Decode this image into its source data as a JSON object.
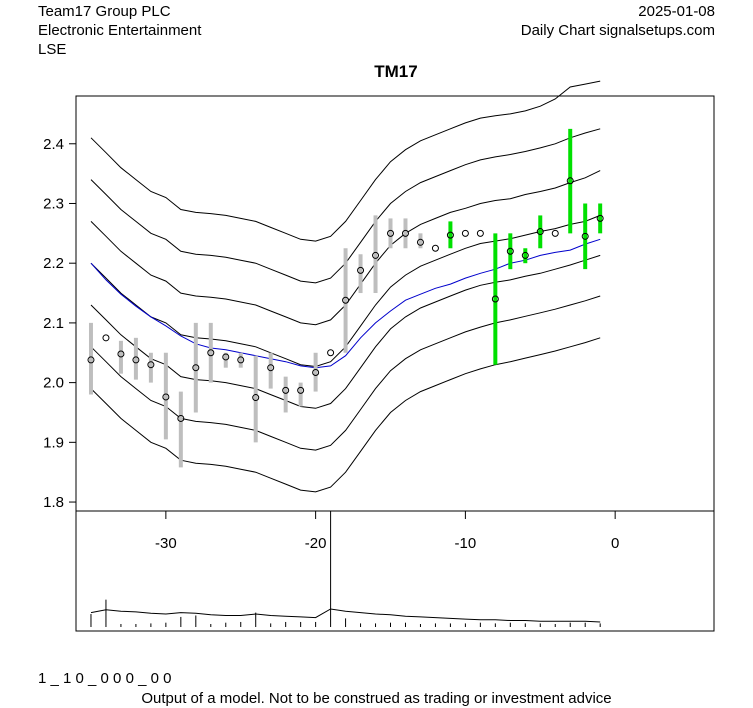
{
  "header": {
    "company": "Team17 Group PLC",
    "sector": "Electronic Entertainment",
    "exchange": "LSE",
    "date": "2025-01-08",
    "chart_kind": "Daily Chart signalsetups.com"
  },
  "footer": {
    "code": "1 _ 1 0 _ 0 0 0 _ 0 0",
    "disclaimer": "Output of a model. Not to be construed as trading or investment advice"
  },
  "colors": {
    "band": "#000000",
    "center": "#0000cc",
    "bar_past": "#bebebe",
    "bar_recent": "#00e000"
  },
  "chart_data": {
    "type": "line",
    "title": "TM17",
    "xlabel": "",
    "ylabel": "",
    "xlim": [
      -36,
      6.6
    ],
    "ylim": [
      1.785,
      2.48
    ],
    "x_ticks": [
      -30,
      -20,
      -10,
      0
    ],
    "y_ticks": [
      1.8,
      1.9,
      2.0,
      2.1,
      2.2,
      2.3,
      2.4
    ],
    "x": [
      -35,
      -34,
      -33,
      -32,
      -31,
      -30,
      -29,
      -28,
      -27,
      -26,
      -25,
      -24,
      -23,
      -22,
      -21,
      -20,
      -19,
      -18,
      -17,
      -16,
      -15,
      -14,
      -13,
      -12,
      -11,
      -10,
      -9,
      -8,
      -7,
      -6,
      -5,
      -4,
      -3,
      -2,
      -1
    ],
    "bands": [
      {
        "name": "upper3",
        "values": [
          2.41,
          2.385,
          2.36,
          2.34,
          2.32,
          2.31,
          2.29,
          2.285,
          2.283,
          2.28,
          2.275,
          2.27,
          2.26,
          2.25,
          2.24,
          2.237,
          2.245,
          2.27,
          2.305,
          2.34,
          2.37,
          2.39,
          2.405,
          2.415,
          2.425,
          2.435,
          2.443,
          2.447,
          2.45,
          2.455,
          2.463,
          2.475,
          2.495,
          2.5,
          2.505
        ]
      },
      {
        "name": "upper2",
        "values": [
          2.34,
          2.315,
          2.29,
          2.27,
          2.25,
          2.24,
          2.22,
          2.215,
          2.213,
          2.21,
          2.205,
          2.2,
          2.19,
          2.18,
          2.17,
          2.167,
          2.175,
          2.2,
          2.235,
          2.27,
          2.3,
          2.32,
          2.335,
          2.345,
          2.355,
          2.365,
          2.373,
          2.378,
          2.382,
          2.387,
          2.393,
          2.4,
          2.41,
          2.418,
          2.425
        ]
      },
      {
        "name": "upper1",
        "values": [
          2.27,
          2.245,
          2.22,
          2.2,
          2.18,
          2.17,
          2.15,
          2.145,
          2.143,
          2.14,
          2.135,
          2.13,
          2.12,
          2.11,
          2.1,
          2.097,
          2.105,
          2.13,
          2.165,
          2.2,
          2.23,
          2.25,
          2.265,
          2.275,
          2.285,
          2.292,
          2.3,
          2.305,
          2.308,
          2.315,
          2.32,
          2.326,
          2.335,
          2.343,
          2.355
        ]
      },
      {
        "name": "center",
        "values": [
          2.2,
          2.175,
          2.15,
          2.13,
          2.11,
          2.1,
          2.08,
          2.075,
          2.073,
          2.07,
          2.065,
          2.06,
          2.05,
          2.04,
          2.03,
          2.027,
          2.035,
          2.06,
          2.095,
          2.13,
          2.16,
          2.18,
          2.195,
          2.205,
          2.215,
          2.225,
          2.233,
          2.237,
          2.241,
          2.247,
          2.253,
          2.258,
          2.265,
          2.27,
          2.28
        ]
      },
      {
        "name": "lower1",
        "values": [
          2.13,
          2.105,
          2.08,
          2.06,
          2.04,
          2.03,
          2.01,
          2.005,
          2.003,
          2.0,
          1.995,
          1.99,
          1.98,
          1.97,
          1.96,
          1.957,
          1.965,
          1.99,
          2.025,
          2.06,
          2.09,
          2.11,
          2.125,
          2.135,
          2.145,
          2.155,
          2.163,
          2.168,
          2.172,
          2.178,
          2.183,
          2.19,
          2.197,
          2.205,
          2.213
        ]
      },
      {
        "name": "lower2",
        "values": [
          2.06,
          2.035,
          2.01,
          1.99,
          1.97,
          1.96,
          1.94,
          1.935,
          1.933,
          1.93,
          1.925,
          1.92,
          1.91,
          1.9,
          1.89,
          1.887,
          1.895,
          1.92,
          1.955,
          1.99,
          2.02,
          2.04,
          2.055,
          2.065,
          2.075,
          2.085,
          2.093,
          2.1,
          2.105,
          2.111,
          2.117,
          2.123,
          2.13,
          2.137,
          2.145
        ]
      },
      {
        "name": "lower3",
        "values": [
          1.99,
          1.965,
          1.94,
          1.92,
          1.9,
          1.89,
          1.87,
          1.865,
          1.863,
          1.86,
          1.855,
          1.85,
          1.84,
          1.83,
          1.82,
          1.817,
          1.825,
          1.85,
          1.885,
          1.92,
          1.95,
          1.97,
          1.985,
          1.995,
          2.005,
          2.015,
          2.023,
          2.03,
          2.035,
          2.041,
          2.047,
          2.053,
          2.06,
          2.067,
          2.075
        ]
      }
    ],
    "center_series": [
      2.2,
      2.172,
      2.148,
      2.128,
      2.11,
      2.095,
      2.078,
      2.065,
      2.058,
      2.055,
      2.05,
      2.045,
      2.04,
      2.035,
      2.028,
      2.025,
      2.028,
      2.045,
      2.075,
      2.1,
      2.12,
      2.138,
      2.148,
      2.158,
      2.165,
      2.175,
      2.183,
      2.19,
      2.2,
      2.205,
      2.213,
      2.218,
      2.222,
      2.232,
      2.24
    ],
    "bars": [
      {
        "x": -35,
        "low": 1.98,
        "high": 2.1,
        "close": 2.038,
        "recent": false
      },
      {
        "x": -34,
        "low": 2.075,
        "high": 2.075,
        "close": 2.075,
        "recent": false
      },
      {
        "x": -33,
        "low": 2.015,
        "high": 2.07,
        "close": 2.048,
        "recent": false
      },
      {
        "x": -32,
        "low": 2.005,
        "high": 2.075,
        "close": 2.038,
        "recent": false
      },
      {
        "x": -31,
        "low": 2.0,
        "high": 2.05,
        "close": 2.03,
        "recent": false
      },
      {
        "x": -30,
        "low": 1.905,
        "high": 2.05,
        "close": 1.976,
        "recent": false
      },
      {
        "x": -29,
        "low": 1.858,
        "high": 1.985,
        "close": 1.94,
        "recent": false
      },
      {
        "x": -28,
        "low": 1.95,
        "high": 2.1,
        "close": 2.025,
        "recent": false
      },
      {
        "x": -27,
        "low": 2.0,
        "high": 2.1,
        "close": 2.05,
        "recent": false
      },
      {
        "x": -26,
        "low": 2.025,
        "high": 2.05,
        "close": 2.043,
        "recent": false
      },
      {
        "x": -25,
        "low": 2.025,
        "high": 2.05,
        "close": 2.038,
        "recent": false
      },
      {
        "x": -24,
        "low": 1.9,
        "high": 2.045,
        "close": 1.975,
        "recent": false
      },
      {
        "x": -23,
        "low": 1.99,
        "high": 2.05,
        "close": 2.025,
        "recent": false
      },
      {
        "x": -22,
        "low": 1.95,
        "high": 2.01,
        "close": 1.987,
        "recent": false
      },
      {
        "x": -21,
        "low": 1.96,
        "high": 2.0,
        "close": 1.987,
        "recent": false
      },
      {
        "x": -20,
        "low": 1.985,
        "high": 2.05,
        "close": 2.017,
        "recent": false
      },
      {
        "x": -19,
        "low": 2.05,
        "high": 2.05,
        "close": 2.05,
        "recent": false
      },
      {
        "x": -18,
        "low": 2.05,
        "high": 2.225,
        "close": 2.138,
        "recent": false
      },
      {
        "x": -17,
        "low": 2.15,
        "high": 2.215,
        "close": 2.188,
        "recent": false
      },
      {
        "x": -16,
        "low": 2.15,
        "high": 2.28,
        "close": 2.213,
        "recent": false
      },
      {
        "x": -15,
        "low": 2.225,
        "high": 2.275,
        "close": 2.25,
        "recent": false
      },
      {
        "x": -14,
        "low": 2.225,
        "high": 2.275,
        "close": 2.25,
        "recent": false
      },
      {
        "x": -13,
        "low": 2.225,
        "high": 2.25,
        "close": 2.235,
        "recent": false
      },
      {
        "x": -12,
        "low": 2.225,
        "high": 2.225,
        "close": 2.225,
        "recent": false
      },
      {
        "x": -11,
        "low": 2.225,
        "high": 2.27,
        "close": 2.247,
        "recent": true
      },
      {
        "x": -10,
        "low": 2.25,
        "high": 2.25,
        "close": 2.25,
        "recent": false
      },
      {
        "x": -9,
        "low": 2.25,
        "high": 2.25,
        "close": 2.25,
        "recent": false
      },
      {
        "x": -8,
        "low": 2.03,
        "high": 2.25,
        "close": 2.14,
        "recent": true
      },
      {
        "x": -7,
        "low": 2.19,
        "high": 2.25,
        "close": 2.22,
        "recent": true
      },
      {
        "x": -6,
        "low": 2.2,
        "high": 2.225,
        "close": 2.213,
        "recent": true
      },
      {
        "x": -5,
        "low": 2.225,
        "high": 2.28,
        "close": 2.253,
        "recent": true
      },
      {
        "x": -4,
        "low": 2.25,
        "high": 2.25,
        "close": 2.25,
        "recent": false
      },
      {
        "x": -3,
        "low": 2.25,
        "high": 2.425,
        "close": 2.338,
        "recent": true
      },
      {
        "x": -2,
        "low": 2.19,
        "high": 2.3,
        "close": 2.245,
        "recent": true
      },
      {
        "x": -1,
        "low": 2.25,
        "high": 2.3,
        "close": 2.275,
        "recent": true
      }
    ],
    "volume": {
      "x": [
        -35,
        -34,
        -33,
        -32,
        -31,
        -30,
        -29,
        -28,
        -27,
        -26,
        -25,
        -24,
        -23,
        -22,
        -21,
        -20,
        -19,
        -18,
        -17,
        -16,
        -15,
        -14,
        -13,
        -12,
        -11,
        -10,
        -9,
        -8,
        -7,
        -6,
        -5,
        -4,
        -3,
        -2,
        -1
      ],
      "values": [
        0.18,
        0.38,
        0.04,
        0.04,
        0.05,
        0.06,
        0.14,
        0.16,
        0.04,
        0.06,
        0.07,
        0.2,
        0.05,
        0.07,
        0.07,
        0.07,
        1.0,
        0.12,
        0.05,
        0.05,
        0.06,
        0.06,
        0.04,
        0.05,
        0.05,
        0.05,
        0.06,
        0.05,
        0.06,
        0.05,
        0.05,
        0.04,
        0.06,
        0.06,
        0.05
      ],
      "avg": [
        0.2,
        0.24,
        0.22,
        0.21,
        0.19,
        0.18,
        0.2,
        0.19,
        0.17,
        0.16,
        0.16,
        0.18,
        0.16,
        0.15,
        0.14,
        0.13,
        0.25,
        0.22,
        0.2,
        0.18,
        0.17,
        0.15,
        0.14,
        0.13,
        0.12,
        0.11,
        0.1,
        0.1,
        0.09,
        0.09,
        0.08,
        0.08,
        0.08,
        0.08,
        0.07
      ]
    }
  }
}
